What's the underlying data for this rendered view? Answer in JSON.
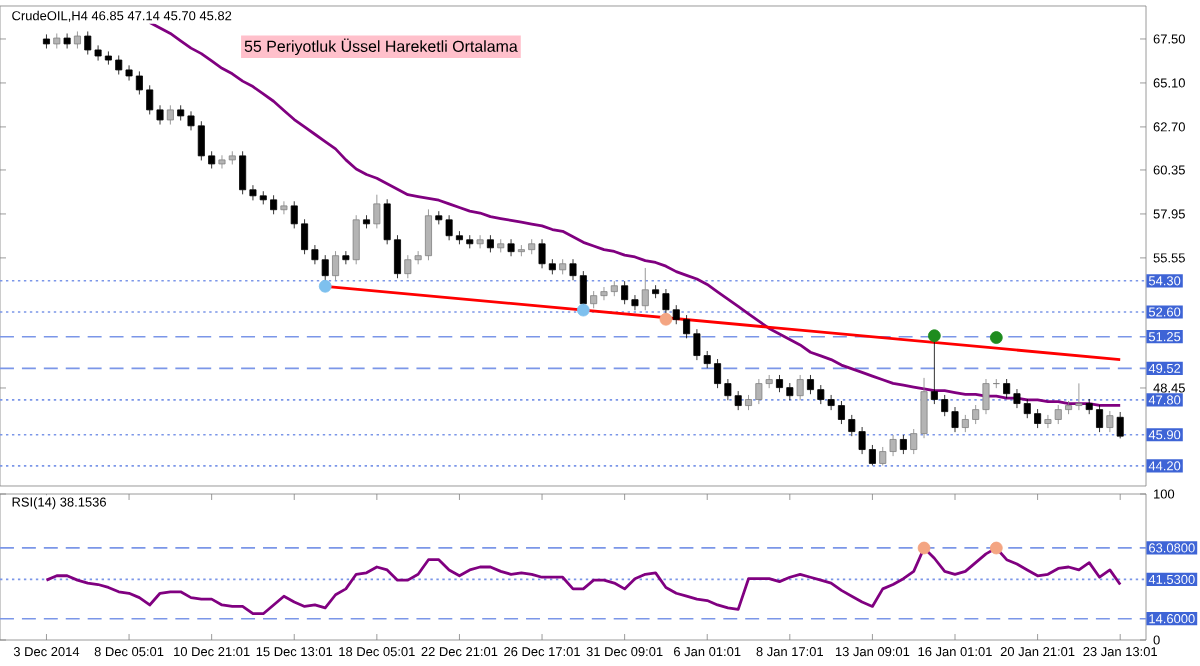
{
  "chart_data": [
    {
      "type": "candlestick",
      "title": "CrudeOIL,H4  46.85 47.14 45.70 45.82",
      "annotations": [
        "55 Periyotluk Üssel Hareketli Ortalama"
      ],
      "categories": [
        null,
        null,
        null,
        null,
        null,
        null,
        null,
        null,
        null,
        null,
        null,
        null,
        null,
        null,
        null,
        null,
        null,
        null,
        null,
        null,
        null,
        null,
        null,
        null,
        null,
        null,
        null,
        null,
        null,
        null,
        null,
        null,
        null,
        null,
        null,
        null,
        null,
        null,
        null,
        null,
        null,
        null,
        null,
        null,
        null,
        null,
        null,
        null,
        null,
        null,
        null,
        null,
        null,
        null,
        null,
        null,
        null,
        null,
        null,
        null,
        null,
        null,
        null,
        null,
        null,
        null,
        null,
        null,
        null,
        null,
        null,
        null,
        null,
        null,
        null,
        null,
        null,
        null,
        null,
        null,
        null,
        null,
        null,
        null,
        null,
        null,
        null,
        null,
        null,
        null,
        null,
        null,
        null,
        null,
        null,
        null,
        null,
        null,
        null,
        null,
        null,
        null,
        null,
        null,
        null
      ],
      "ohlc": [
        [
          67.5,
          67.75,
          66.98,
          67.23
        ],
        [
          67.23,
          67.8,
          66.98,
          67.55
        ],
        [
          67.55,
          67.8,
          66.98,
          67.23
        ],
        [
          67.23,
          67.91,
          66.98,
          67.66
        ],
        [
          67.66,
          67.91,
          66.65,
          66.9
        ],
        [
          66.9,
          67.15,
          66.32,
          66.57
        ],
        [
          66.57,
          66.82,
          66.1,
          66.35
        ],
        [
          66.35,
          66.6,
          65.56,
          65.81
        ],
        [
          65.81,
          66.06,
          65.23,
          65.48
        ],
        [
          65.48,
          65.73,
          64.47,
          64.72
        ],
        [
          64.72,
          64.97,
          63.38,
          63.63
        ],
        [
          63.63,
          63.88,
          62.83,
          63.08
        ],
        [
          63.08,
          63.88,
          62.83,
          63.63
        ],
        [
          63.63,
          63.88,
          63.05,
          63.3
        ],
        [
          63.3,
          63.55,
          62.51,
          62.76
        ],
        [
          62.76,
          63.01,
          60.87,
          61.12
        ],
        [
          61.12,
          61.37,
          60.43,
          60.68
        ],
        [
          60.68,
          61.15,
          60.43,
          60.9
        ],
        [
          60.9,
          61.37,
          60.65,
          61.12
        ],
        [
          61.12,
          61.37,
          59.02,
          59.27
        ],
        [
          59.27,
          59.52,
          58.69,
          58.94
        ],
        [
          58.94,
          59.19,
          58.47,
          58.72
        ],
        [
          58.72,
          58.97,
          57.93,
          58.18
        ],
        [
          58.18,
          58.64,
          57.93,
          58.39
        ],
        [
          58.39,
          58.64,
          57.16,
          57.41
        ],
        [
          57.41,
          57.66,
          55.75,
          56.0
        ],
        [
          56.0,
          56.25,
          55.2,
          55.45
        ],
        [
          55.45,
          55.7,
          54.1,
          54.58
        ],
        [
          54.58,
          55.92,
          54.33,
          55.67
        ],
        [
          55.67,
          55.92,
          55.2,
          55.45
        ],
        [
          55.45,
          57.88,
          55.2,
          57.63
        ],
        [
          57.63,
          57.88,
          57.16,
          57.41
        ],
        [
          57.41,
          59.0,
          57.16,
          58.5
        ],
        [
          58.5,
          58.75,
          56.29,
          56.54
        ],
        [
          56.54,
          56.79,
          54.44,
          54.69
        ],
        [
          54.69,
          55.7,
          54.44,
          55.45
        ],
        [
          55.45,
          55.92,
          55.2,
          55.67
        ],
        [
          55.67,
          58.2,
          55.42,
          57.85
        ],
        [
          57.85,
          58.1,
          57.38,
          57.63
        ],
        [
          57.63,
          57.88,
          56.51,
          56.76
        ],
        [
          56.76,
          57.01,
          56.29,
          56.54
        ],
        [
          56.54,
          56.79,
          56.07,
          56.32
        ],
        [
          56.32,
          56.79,
          56.07,
          56.54
        ],
        [
          56.54,
          56.79,
          55.85,
          56.1
        ],
        [
          56.1,
          56.57,
          55.85,
          56.32
        ],
        [
          56.32,
          56.57,
          55.64,
          55.89
        ],
        [
          55.89,
          56.25,
          55.64,
          56.0
        ],
        [
          56.0,
          56.57,
          55.75,
          56.32
        ],
        [
          56.32,
          56.57,
          54.98,
          55.23
        ],
        [
          55.23,
          55.48,
          54.65,
          54.9
        ],
        [
          54.9,
          55.48,
          54.65,
          55.23
        ],
        [
          55.23,
          55.48,
          54.33,
          54.58
        ],
        [
          54.58,
          54.83,
          52.75,
          53.05
        ],
        [
          53.05,
          53.74,
          52.8,
          53.49
        ],
        [
          53.49,
          53.96,
          53.24,
          53.71
        ],
        [
          53.71,
          54.28,
          53.46,
          54.03
        ],
        [
          54.03,
          54.28,
          53.02,
          53.27
        ],
        [
          53.27,
          53.52,
          52.69,
          52.94
        ],
        [
          52.94,
          55.0,
          52.69,
          53.81
        ],
        [
          53.81,
          54.06,
          53.35,
          53.6
        ],
        [
          53.6,
          53.85,
          52.47,
          52.72
        ],
        [
          52.72,
          52.97,
          51.93,
          52.18
        ],
        [
          52.18,
          52.43,
          51.16,
          51.41
        ],
        [
          51.41,
          51.66,
          49.97,
          50.22
        ],
        [
          50.22,
          50.47,
          49.53,
          49.78
        ],
        [
          49.78,
          50.03,
          48.44,
          48.69
        ],
        [
          48.69,
          48.94,
          47.78,
          48.03
        ],
        [
          48.03,
          48.28,
          47.24,
          47.49
        ],
        [
          47.49,
          48.07,
          47.24,
          47.82
        ],
        [
          47.82,
          48.94,
          47.57,
          48.69
        ],
        [
          48.69,
          49.16,
          48.44,
          48.91
        ],
        [
          48.91,
          49.16,
          48.22,
          48.47
        ],
        [
          48.47,
          48.72,
          47.78,
          48.03
        ],
        [
          48.03,
          49.16,
          47.78,
          48.91
        ],
        [
          48.91,
          49.16,
          48.11,
          48.36
        ],
        [
          48.36,
          48.61,
          47.57,
          47.82
        ],
        [
          47.82,
          48.07,
          47.24,
          47.49
        ],
        [
          47.49,
          47.74,
          46.48,
          46.73
        ],
        [
          46.73,
          46.98,
          45.82,
          46.07
        ],
        [
          46.07,
          46.32,
          44.84,
          45.09
        ],
        [
          45.09,
          45.34,
          44.22,
          44.33
        ],
        [
          44.33,
          45.23,
          44.22,
          44.98
        ],
        [
          44.98,
          45.89,
          44.73,
          45.64
        ],
        [
          45.64,
          45.89,
          44.84,
          45.09
        ],
        [
          45.09,
          46.21,
          44.84,
          45.96
        ],
        [
          45.96,
          49.0,
          45.71,
          48.25
        ],
        [
          48.25,
          51.1,
          47.57,
          47.82
        ],
        [
          47.82,
          48.07,
          46.91,
          47.16
        ],
        [
          47.16,
          47.41,
          46.04,
          46.29
        ],
        [
          46.29,
          46.98,
          46.04,
          46.73
        ],
        [
          46.73,
          47.52,
          46.48,
          47.27
        ],
        [
          47.27,
          48.94,
          47.02,
          48.69
        ],
        [
          48.69,
          48.94,
          48.44,
          48.69
        ],
        [
          48.69,
          48.94,
          47.89,
          48.14
        ],
        [
          48.14,
          48.39,
          47.35,
          47.6
        ],
        [
          47.6,
          47.85,
          46.8,
          47.05
        ],
        [
          47.05,
          47.3,
          46.26,
          46.51
        ],
        [
          46.51,
          46.98,
          46.26,
          46.73
        ],
        [
          46.73,
          47.52,
          46.48,
          47.27
        ],
        [
          47.27,
          47.74,
          47.02,
          47.49
        ],
        [
          47.49,
          48.7,
          47.24,
          47.6
        ],
        [
          47.6,
          47.85,
          47.02,
          47.27
        ],
        [
          47.27,
          47.52,
          46.04,
          46.29
        ],
        [
          46.29,
          47.19,
          46.04,
          46.94
        ],
        [
          46.85,
          47.14,
          45.7,
          45.82
        ]
      ],
      "series": [
        {
          "type": "line",
          "color": "#800080",
          "values": [
            null,
            null,
            null,
            null,
            null,
            null,
            null,
            null,
            null,
            null,
            68.4,
            68.1,
            67.8,
            67.4,
            67.0,
            66.7,
            66.3,
            65.9,
            65.6,
            65.2,
            64.9,
            64.5,
            64.1,
            63.6,
            63.1,
            62.7,
            62.3,
            61.9,
            61.5,
            60.9,
            60.4,
            60.1,
            59.9,
            59.6,
            59.3,
            59.0,
            58.9,
            58.8,
            58.7,
            58.5,
            58.3,
            58.1,
            58.0,
            57.8,
            57.7,
            57.6,
            57.5,
            57.4,
            57.3,
            57.1,
            57.0,
            56.7,
            56.4,
            56.2,
            56.0,
            55.9,
            55.7,
            55.6,
            55.4,
            55.3,
            55.1,
            54.8,
            54.6,
            54.4,
            54.1,
            53.7,
            53.3,
            52.9,
            52.5,
            52.1,
            51.7,
            51.4,
            51.1,
            50.8,
            50.4,
            50.2,
            50.0,
            49.7,
            49.5,
            49.3,
            49.1,
            48.9,
            48.7,
            48.6,
            48.5,
            48.4,
            48.3,
            48.3,
            48.2,
            48.1,
            48.1,
            48.0,
            48.0,
            47.9,
            47.9,
            47.8,
            47.8,
            47.7,
            47.7,
            47.6,
            47.6,
            47.6,
            47.5,
            47.5,
            47.5
          ]
        },
        {
          "type": "line",
          "color": "#ff0000",
          "values": [
            null,
            null,
            null,
            null,
            null,
            null,
            null,
            null,
            null,
            null,
            null,
            null,
            null,
            null,
            null,
            null,
            null,
            null,
            null,
            null,
            null,
            null,
            null,
            null,
            null,
            null,
            null,
            54.0,
            null,
            null,
            null,
            null,
            null,
            null,
            null,
            null,
            null,
            null,
            null,
            null,
            null,
            null,
            null,
            null,
            null,
            null,
            null,
            null,
            null,
            null,
            null,
            null,
            null,
            null,
            null,
            null,
            null,
            null,
            null,
            null,
            null,
            null,
            null,
            null,
            null,
            null,
            null,
            null,
            null,
            null,
            null,
            null,
            null,
            null,
            null,
            null,
            null,
            null,
            null,
            null,
            null,
            null,
            null,
            null,
            null,
            null,
            null,
            null,
            null,
            null,
            null,
            null,
            null,
            null,
            null,
            null,
            null,
            null,
            null,
            null,
            null,
            null,
            null,
            null,
            50.0
          ]
        },
        {
          "type": "scatter",
          "marker": "circle",
          "values": [
            null,
            null,
            null,
            null,
            null,
            null,
            null,
            null,
            null,
            null,
            null,
            null,
            null,
            null,
            null,
            null,
            null,
            null,
            null,
            null,
            null,
            null,
            null,
            null,
            null,
            null,
            null,
            54.0,
            null,
            null,
            null,
            null,
            null,
            null,
            null,
            null,
            null,
            null,
            null,
            null,
            null,
            null,
            null,
            null,
            null,
            null,
            null,
            null,
            null,
            null,
            null,
            null,
            52.7,
            null,
            null,
            null,
            null,
            null,
            null,
            null,
            52.2,
            null,
            null,
            null,
            null,
            null,
            null,
            null,
            null,
            null,
            null,
            null,
            null,
            null,
            null,
            null,
            null,
            null,
            null,
            null,
            null,
            null,
            null,
            null,
            null,
            null,
            51.3,
            null,
            null,
            null,
            null,
            null,
            51.2,
            null,
            null,
            null,
            null,
            null,
            null,
            null,
            null,
            null,
            null,
            null,
            null
          ],
          "colors": [
            null,
            null,
            null,
            null,
            null,
            null,
            null,
            null,
            null,
            null,
            null,
            null,
            null,
            null,
            null,
            null,
            null,
            null,
            null,
            null,
            null,
            null,
            null,
            null,
            null,
            null,
            null,
            "#7ec0ee",
            null,
            null,
            null,
            null,
            null,
            null,
            null,
            null,
            null,
            null,
            null,
            null,
            null,
            null,
            null,
            null,
            null,
            null,
            null,
            null,
            null,
            null,
            null,
            null,
            "#7ec0ee",
            null,
            null,
            null,
            null,
            null,
            null,
            null,
            "#f4a582",
            null,
            null,
            null,
            null,
            null,
            null,
            null,
            null,
            null,
            null,
            null,
            null,
            null,
            null,
            null,
            null,
            null,
            null,
            null,
            null,
            null,
            null,
            null,
            null,
            null,
            "#1e8c1e",
            null,
            null,
            null,
            null,
            null,
            "#1e8c1e",
            null,
            null,
            null,
            null,
            null,
            null,
            null,
            null,
            null,
            null,
            null,
            null
          ]
        }
      ],
      "ylim": [
        43.1,
        69.3
      ],
      "yticks": [
        {
          "value": 67.5,
          "label": "67.50"
        },
        {
          "value": 65.1,
          "label": "65.10"
        },
        {
          "value": 62.7,
          "label": "62.70"
        },
        60.35,
        57.95,
        55.55,
        48.45
      ],
      "ref_lines": [
        {
          "axis": "y",
          "value": 54.3,
          "label": "54.30",
          "color": "#7b96e8",
          "line_style": "dotted"
        },
        {
          "axis": "y",
          "value": 52.6,
          "label": "52.60",
          "color": "#7b96e8",
          "line_style": "dotted"
        },
        {
          "axis": "y",
          "value": 51.25,
          "label": "51.25",
          "color": "#7b96e8",
          "line_style": "dashed"
        },
        {
          "axis": "y",
          "value": 49.52,
          "label": "49.52",
          "color": "#7b96e8",
          "line_style": "dashed"
        },
        {
          "axis": "y",
          "value": 47.8,
          "label": "47.80",
          "color": "#7b96e8",
          "line_style": "dotted"
        },
        {
          "axis": "y",
          "value": 45.9,
          "label": "45.90",
          "color": "#7b96e8",
          "line_style": "dotted"
        },
        {
          "axis": "y",
          "value": 44.2,
          "label": "44.20",
          "color": "#7b96e8",
          "line_style": "dotted"
        }
      ]
    },
    {
      "type": "line",
      "title": "RSI(14) 38.1536",
      "categories": [
        "3 Dec 2014",
        null,
        null,
        null,
        null,
        null,
        null,
        null,
        "8 Dec 05:01",
        null,
        null,
        null,
        null,
        null,
        null,
        null,
        "10 Dec 21:01",
        null,
        null,
        null,
        null,
        null,
        null,
        null,
        "15 Dec 13:01",
        null,
        null,
        null,
        null,
        null,
        null,
        null,
        "18 Dec 05:01",
        null,
        null,
        null,
        null,
        null,
        null,
        null,
        "22 Dec 21:01",
        null,
        null,
        null,
        null,
        null,
        null,
        null,
        "26 Dec 17:01",
        null,
        null,
        null,
        null,
        null,
        null,
        null,
        "31 Dec 09:01",
        null,
        null,
        null,
        null,
        null,
        null,
        null,
        "6 Jan 01:01",
        null,
        null,
        null,
        null,
        null,
        null,
        null,
        "8 Jan 17:01",
        null,
        null,
        null,
        null,
        null,
        null,
        null,
        "13 Jan 09:01",
        null,
        null,
        null,
        null,
        null,
        null,
        null,
        "16 Jan 01:01",
        null,
        null,
        null,
        null,
        null,
        null,
        null,
        "20 Jan 21:01",
        null,
        null,
        null,
        null,
        null,
        null,
        null,
        "23 Jan 13:01"
      ],
      "series": [
        {
          "color": "#800080",
          "values": [
            41,
            44,
            44,
            41,
            39,
            38,
            36,
            33,
            32,
            29,
            24,
            32,
            33,
            33,
            29,
            28,
            28,
            24,
            23,
            23,
            18,
            18,
            24,
            30,
            26,
            23,
            24,
            22,
            31,
            35,
            45,
            46,
            50,
            48,
            41,
            41,
            45,
            55,
            55,
            48,
            44,
            48,
            50,
            50,
            47,
            45,
            46,
            45,
            43,
            43,
            43,
            35,
            35,
            41,
            41,
            39,
            35,
            42,
            45,
            46,
            36,
            32,
            30,
            28,
            27,
            24,
            22,
            21,
            42,
            42,
            42,
            40,
            43,
            45,
            43,
            41,
            39,
            34,
            30,
            26,
            23,
            35,
            38,
            42,
            47,
            63,
            56,
            47,
            45,
            47,
            53,
            59,
            63,
            55,
            52,
            48,
            44,
            45,
            49,
            50,
            48,
            53,
            43,
            48,
            38
          ]
        },
        {
          "type": "scatter",
          "marker": "circle",
          "values": [
            null,
            null,
            null,
            null,
            null,
            null,
            null,
            null,
            null,
            null,
            null,
            null,
            null,
            null,
            null,
            null,
            null,
            null,
            null,
            null,
            null,
            null,
            null,
            null,
            null,
            null,
            null,
            null,
            null,
            null,
            null,
            null,
            null,
            null,
            null,
            null,
            null,
            null,
            null,
            null,
            null,
            null,
            null,
            null,
            null,
            null,
            null,
            null,
            null,
            null,
            null,
            null,
            null,
            null,
            null,
            null,
            null,
            null,
            null,
            null,
            null,
            null,
            null,
            null,
            null,
            null,
            null,
            null,
            null,
            null,
            null,
            null,
            null,
            null,
            null,
            null,
            null,
            null,
            null,
            null,
            null,
            null,
            null,
            null,
            null,
            63,
            null,
            null,
            null,
            null,
            null,
            null,
            63,
            null,
            null,
            null,
            null,
            null,
            null,
            null,
            null,
            null,
            null,
            null,
            null
          ],
          "colors": [
            null,
            null,
            null,
            null,
            null,
            null,
            null,
            null,
            null,
            null,
            null,
            null,
            null,
            null,
            null,
            null,
            null,
            null,
            null,
            null,
            null,
            null,
            null,
            null,
            null,
            null,
            null,
            null,
            null,
            null,
            null,
            null,
            null,
            null,
            null,
            null,
            null,
            null,
            null,
            null,
            null,
            null,
            null,
            null,
            null,
            null,
            null,
            null,
            null,
            null,
            null,
            null,
            null,
            null,
            null,
            null,
            null,
            null,
            null,
            null,
            null,
            null,
            null,
            null,
            null,
            null,
            null,
            null,
            null,
            null,
            null,
            null,
            null,
            null,
            null,
            null,
            null,
            null,
            null,
            null,
            null,
            null,
            null,
            null,
            null,
            "#f4a582",
            null,
            null,
            null,
            null,
            null,
            null,
            "#f4a582",
            null,
            null,
            null,
            null,
            null,
            null,
            null,
            null,
            null,
            null,
            null,
            null
          ]
        }
      ],
      "ylim": [
        0,
        100
      ],
      "yticks": [
        100,
        0
      ],
      "ref_lines": [
        {
          "axis": "y",
          "value": 63.08,
          "label": "63.0800",
          "color": "#7b96e8",
          "line_style": "dashed"
        },
        {
          "axis": "y",
          "value": 41.53,
          "label": "41.5300",
          "color": "#7b96e8",
          "line_style": "dotted"
        },
        {
          "axis": "y",
          "value": 14.6,
          "label": "14.6000",
          "color": "#7b96e8",
          "line_style": "dashed"
        }
      ]
    }
  ]
}
